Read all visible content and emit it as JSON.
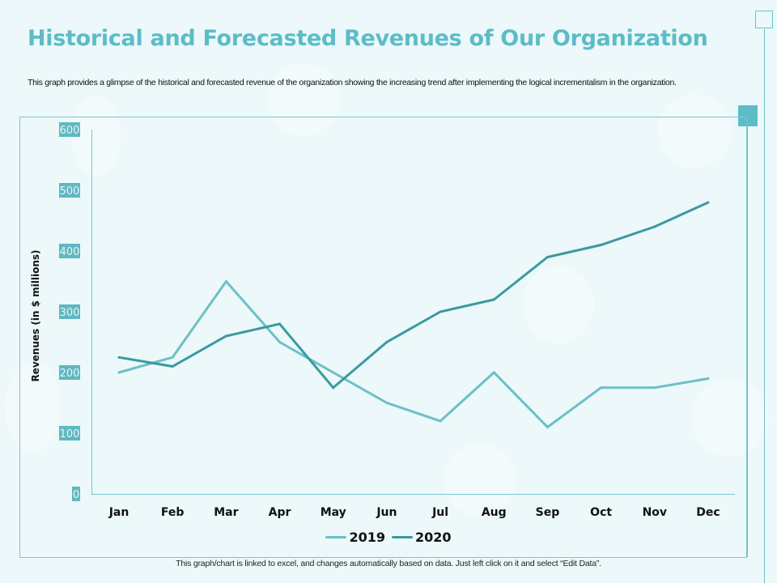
{
  "header": {
    "title": "Historical and Forecasted Revenues of Our Organization",
    "subtitle": "This graph provides a glimpse of the historical and forecasted revenue of the organization showing the increasing trend after implementing the logical incrementalism in the organization."
  },
  "footer": {
    "note": "This graph/chart is linked to excel, and changes automatically based on data. Just left click on it and select “Edit Data”."
  },
  "colors": {
    "title": "#5cbcc8",
    "series_2019": "#6cc0c6",
    "series_2020": "#3a9aa0",
    "tick_box": "#5fb8c2",
    "axis": "#7cc6ce"
  },
  "chart_data": {
    "type": "line",
    "title": "",
    "xlabel": "",
    "ylabel": "Revenues (in $ millions)",
    "categories": [
      "Jan",
      "Feb",
      "Mar",
      "Apr",
      "May",
      "Jun",
      "Jul",
      "Aug",
      "Sep",
      "Oct",
      "Nov",
      "Dec"
    ],
    "ylim": [
      0,
      600
    ],
    "yticks": [
      0,
      100,
      200,
      300,
      400,
      500,
      600
    ],
    "grid": false,
    "legend_position": "bottom",
    "series": [
      {
        "name": "2019",
        "values": [
          200,
          225,
          350,
          250,
          200,
          150,
          120,
          200,
          110,
          175,
          175,
          190
        ]
      },
      {
        "name": "2020",
        "values": [
          225,
          210,
          260,
          280,
          175,
          250,
          300,
          320,
          390,
          410,
          440,
          480
        ]
      }
    ]
  }
}
